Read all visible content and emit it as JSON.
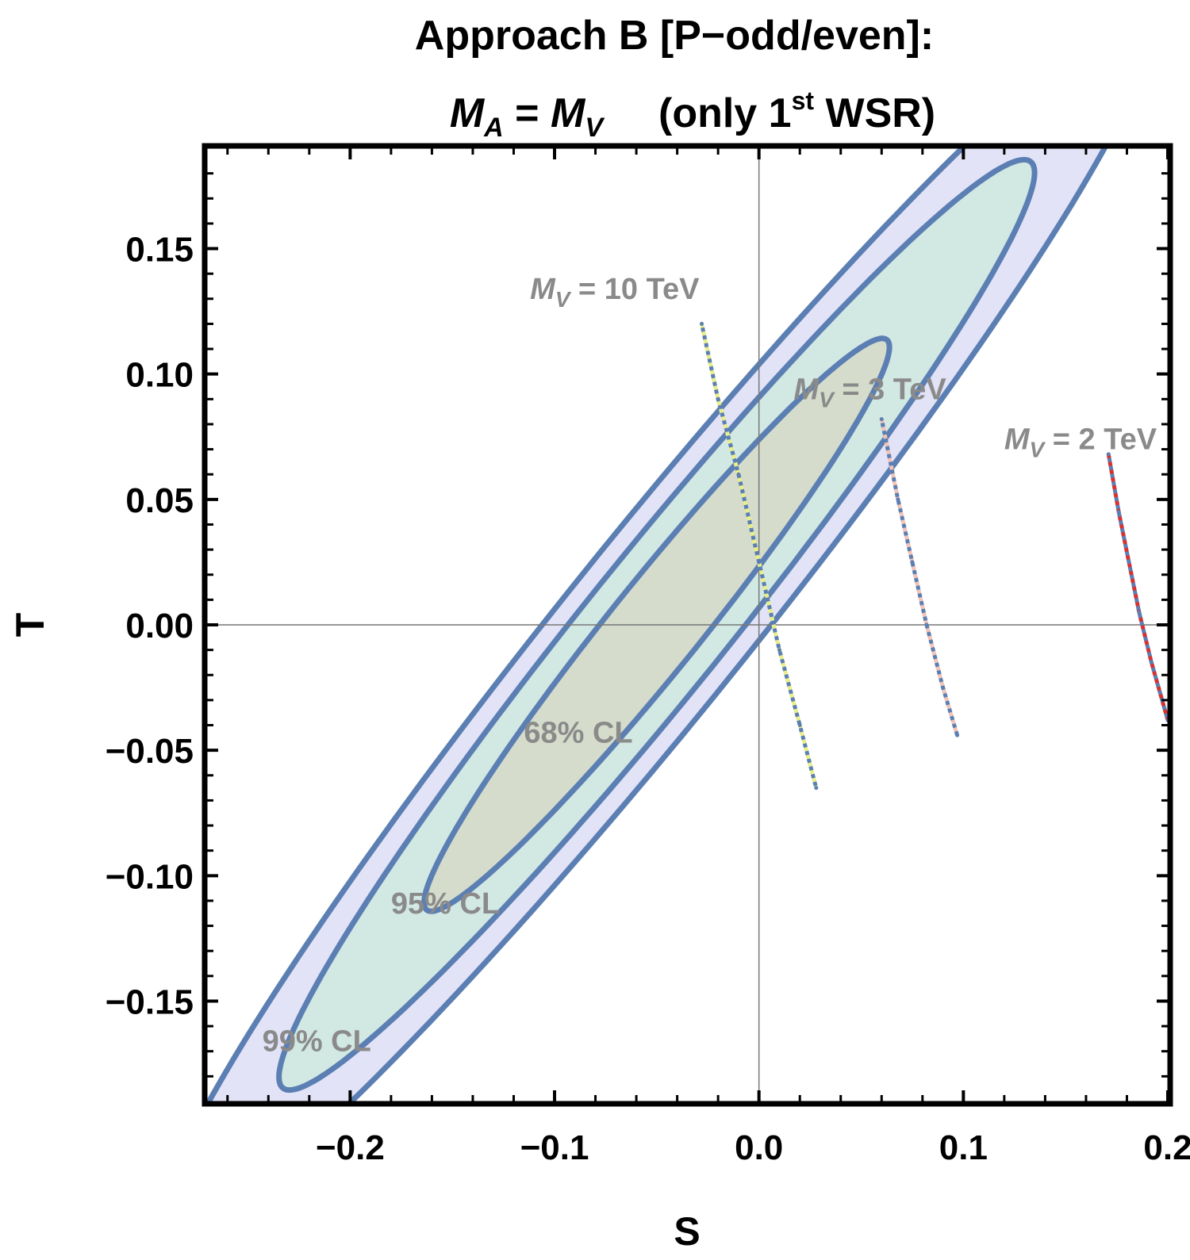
{
  "chart_data": {
    "type": "scatter",
    "title_line1": "Approach B  [P−odd/even]:",
    "title_line2": {
      "lhs_symbol": "M",
      "lhs_subscript": "A",
      "equals": " = ",
      "rhs_symbol": "M",
      "rhs_subscript": "V",
      "note_prefix": "(only 1",
      "note_superscript": "st",
      "note_suffix": " WSR)"
    },
    "xlabel": "S",
    "ylabel": "T",
    "xlim": [
      -0.27,
      0.2
    ],
    "ylim": [
      -0.19,
      0.19
    ],
    "xticks": [
      {
        "value": -0.2,
        "label": "−0.2"
      },
      {
        "value": -0.1,
        "label": "−0.1"
      },
      {
        "value": 0.0,
        "label": "0.0"
      },
      {
        "value": 0.1,
        "label": "0.1"
      },
      {
        "value": 0.2,
        "label": "0.2"
      }
    ],
    "yticks": [
      {
        "value": 0.15,
        "label": "0.15"
      },
      {
        "value": 0.1,
        "label": "0.10"
      },
      {
        "value": 0.05,
        "label": "0.05"
      },
      {
        "value": 0.0,
        "label": "0.00"
      },
      {
        "value": -0.05,
        "label": "−0.05"
      },
      {
        "value": -0.1,
        "label": "−0.10"
      },
      {
        "value": -0.15,
        "label": "−0.15"
      }
    ],
    "grid": false,
    "zero_lines": true,
    "contours": [
      {
        "label": "99% CL",
        "center": [
          -0.05,
          0.0
        ],
        "semi_major": 0.34,
        "semi_minor": 0.04,
        "angle_deg": 45.1,
        "fill": "#e3e3f8",
        "label_at": [
          -0.243,
          -0.17
        ]
      },
      {
        "label": "95% CL",
        "center": [
          -0.05,
          0.0
        ],
        "semi_major": 0.26,
        "semi_minor": 0.031,
        "angle_deg": 45.1,
        "fill": "#d2e8e3",
        "label_at": [
          -0.18,
          -0.115
        ]
      },
      {
        "label": "68% CL",
        "center": [
          -0.05,
          0.0
        ],
        "semi_major": 0.16,
        "semi_minor": 0.02,
        "angle_deg": 45.1,
        "fill": "#d5dccb",
        "label_at": [
          -0.115,
          -0.047
        ]
      }
    ],
    "contour_stroke": "#5b7fb3",
    "series": [
      {
        "name": "M_V = 10 TeV",
        "symbol": "M",
        "subscript": "V",
        "value_text": " = 10 TeV",
        "label_at": [
          -0.112,
          0.13
        ],
        "points": [
          [
            -0.028,
            0.12
          ],
          [
            -0.02,
            0.09
          ],
          [
            -0.01,
            0.06
          ],
          [
            0.0,
            0.025
          ],
          [
            0.01,
            -0.01
          ],
          [
            0.02,
            -0.04
          ],
          [
            0.028,
            -0.065
          ]
        ],
        "colors": [
          "#5b7fb3",
          "#e9ee8a"
        ]
      },
      {
        "name": "M_V = 3 TeV",
        "symbol": "M",
        "subscript": "V",
        "value_text": " = 3 TeV",
        "label_at": [
          0.017,
          0.09
        ],
        "points": [
          [
            0.06,
            0.082
          ],
          [
            0.068,
            0.05
          ],
          [
            0.075,
            0.025
          ],
          [
            0.082,
            0.0
          ],
          [
            0.09,
            -0.025
          ],
          [
            0.097,
            -0.044
          ]
        ],
        "colors": [
          "#5b7fb3",
          "#f2c3b8"
        ]
      },
      {
        "name": "M_V = 2 TeV",
        "symbol": "M",
        "subscript": "V",
        "value_text": " = 2 TeV",
        "label_at": [
          0.12,
          0.07
        ],
        "points": [
          [
            0.171,
            0.068
          ],
          [
            0.176,
            0.045
          ],
          [
            0.181,
            0.025
          ],
          [
            0.186,
            0.005
          ],
          [
            0.192,
            -0.015
          ],
          [
            0.2,
            -0.038
          ]
        ],
        "colors": [
          "#5b7fb3",
          "#d93030"
        ]
      }
    ]
  }
}
